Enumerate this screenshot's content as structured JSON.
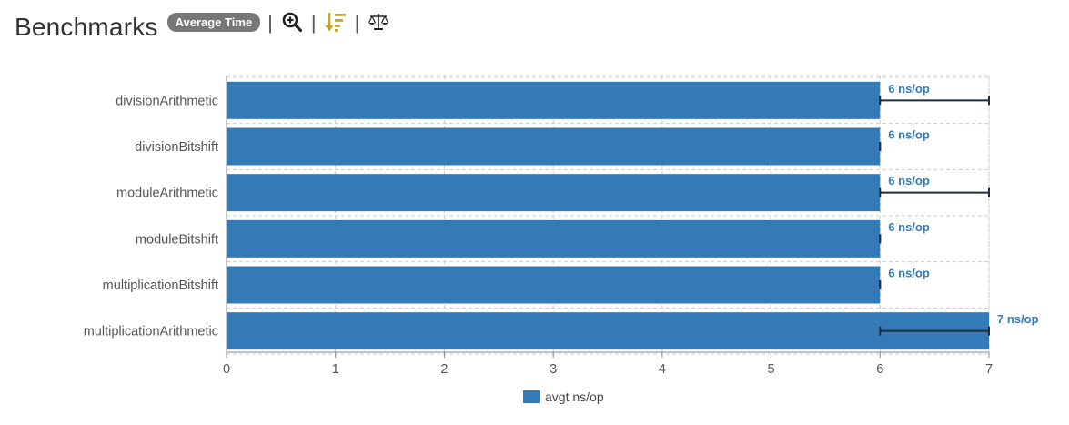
{
  "header": {
    "title": "Benchmarks",
    "mode_badge": "Average Time",
    "tools": [
      {
        "icon": "zoom-in-icon"
      },
      {
        "icon": "sort-descending-icon"
      },
      {
        "icon": "balance-scale-icon"
      }
    ]
  },
  "colors": {
    "bar": "#337ab7",
    "error_bar": "#1f2f3f",
    "label": "#337ab7",
    "grid": "#cccccc",
    "sort_icon": "#c9a227"
  },
  "chart_data": {
    "type": "bar",
    "orientation": "horizontal",
    "title": "",
    "xlabel": "",
    "ylabel": "",
    "xlim": [
      0,
      7
    ],
    "x_ticks": [
      0,
      1,
      2,
      3,
      4,
      5,
      6,
      7
    ],
    "grid": true,
    "legend_position": "bottom",
    "categories": [
      "divisionArithmetic",
      "divisionBitshift",
      "moduleArithmetic",
      "moduleBitshift",
      "multiplicationBitshift",
      "multiplicationArithmetic"
    ],
    "series": [
      {
        "name": "avgt ns/op",
        "values": [
          6,
          6,
          6,
          6,
          6,
          7
        ],
        "error_low": [
          6,
          6,
          6,
          6,
          6,
          6
        ],
        "error_high": [
          7,
          6,
          7,
          6,
          6,
          7
        ],
        "labels": [
          "6 ns/op",
          "6 ns/op",
          "6 ns/op",
          "6 ns/op",
          "6 ns/op",
          "7 ns/op"
        ]
      }
    ]
  }
}
